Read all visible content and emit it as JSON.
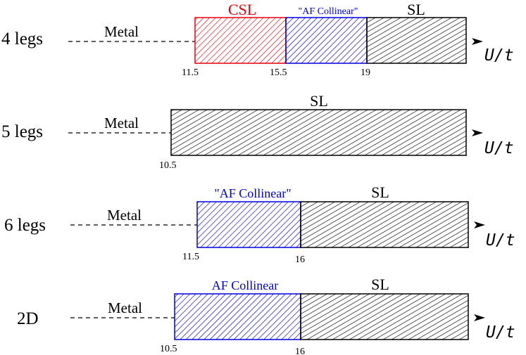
{
  "rows": [
    {
      "label": "4 legs",
      "metal": "Metal",
      "axis": "U/t",
      "phases": [
        {
          "label": "CSL",
          "color": "#e8000b"
        },
        {
          "label": "\"AF Collinear\"",
          "color": "#0000e0"
        },
        {
          "label": "SL",
          "color": "#000000"
        }
      ],
      "ticks": [
        "11.5",
        "15.5",
        "19"
      ]
    },
    {
      "label": "5 legs",
      "metal": "Metal",
      "axis": "U/t",
      "phases": [
        {
          "label": "SL",
          "color": "#000000"
        }
      ],
      "ticks": [
        "10.5"
      ]
    },
    {
      "label": "6 legs",
      "metal": "Metal",
      "axis": "U/t",
      "phases": [
        {
          "label": "\"AF Collinear\"",
          "color": "#0000e0"
        },
        {
          "label": "SL",
          "color": "#000000"
        }
      ],
      "ticks": [
        "11.5",
        "16"
      ]
    },
    {
      "label": "2D",
      "metal": "Metal",
      "axis": "U/t",
      "phases": [
        {
          "label": "AF Collinear",
          "color": "#0000e0"
        },
        {
          "label": "SL",
          "color": "#000000"
        }
      ],
      "ticks": [
        "10.5",
        "16"
      ]
    }
  ]
}
